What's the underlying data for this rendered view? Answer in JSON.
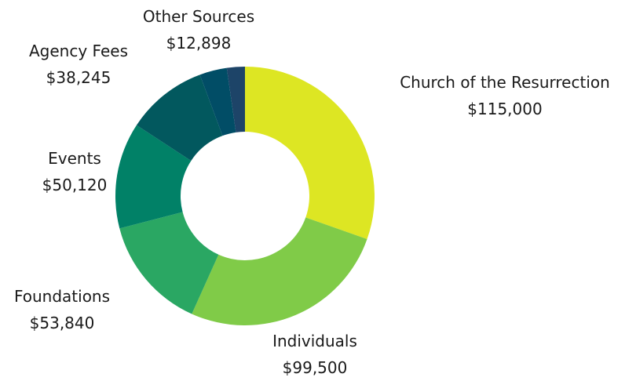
{
  "chart_data": {
    "type": "pie",
    "style": "donut",
    "slices": [
      {
        "label": "Church of the Resurrection",
        "value": 115000,
        "value_label": "$115,000",
        "color": "#dde623"
      },
      {
        "label": "Individuals",
        "value": 99500,
        "value_label": "$99,500",
        "color": "#80cb48"
      },
      {
        "label": "Foundations",
        "value": 53840,
        "value_label": "$53,840",
        "color": "#2aa763"
      },
      {
        "label": "Events",
        "value": 50120,
        "value_label": "$50,120",
        "color": "#018167"
      },
      {
        "label": "Agency Fees",
        "value": 38245,
        "value_label": "$38,245",
        "color": "#02585e"
      },
      {
        "label": "Other Sources",
        "value": 12898,
        "value_label": "$12,898",
        "color": "#014d66"
      },
      {
        "label": "",
        "value": 8500,
        "value_label": "",
        "color": "#1d4468"
      }
    ]
  }
}
